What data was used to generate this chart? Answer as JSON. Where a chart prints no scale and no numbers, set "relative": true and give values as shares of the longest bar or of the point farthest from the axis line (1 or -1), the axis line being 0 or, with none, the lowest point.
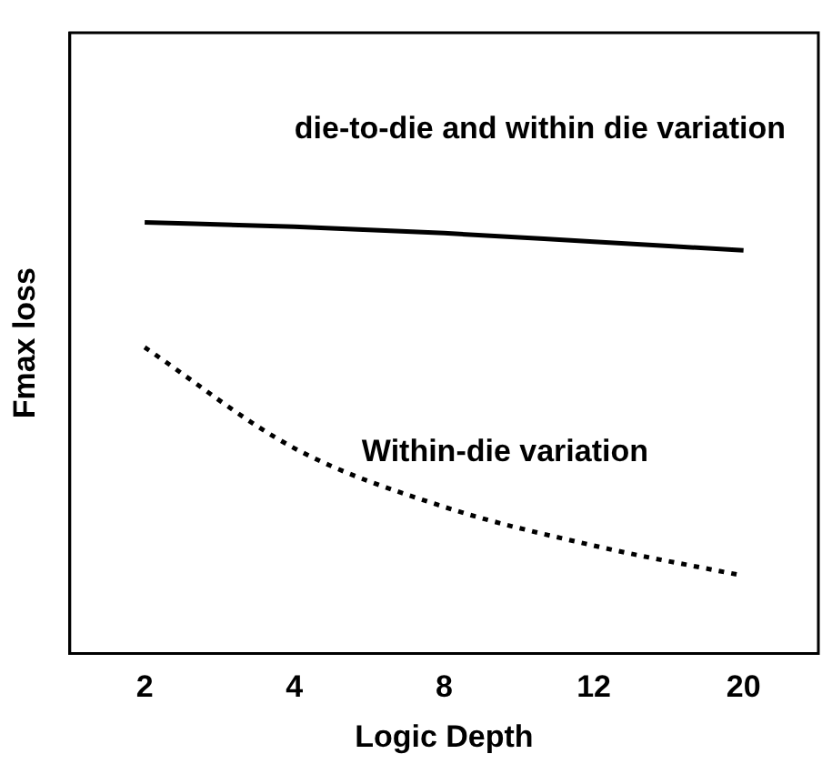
{
  "chart_data": {
    "type": "line",
    "xlabel": "Logic Depth",
    "ylabel": "Fmax loss",
    "relative": true,
    "categories": [
      "2",
      "4",
      "8",
      "12",
      "20"
    ],
    "legend": false,
    "grid": false,
    "marker": "none",
    "series": [
      {
        "name": "die-to-die and within die variation",
        "color": "#000000",
        "line_style": "solid",
        "values": [
          1,
          0.99,
          0.975,
          0.955,
          0.935
        ]
      },
      {
        "name": "Within-die variation",
        "color": "#000000",
        "line_style": "dotted",
        "values": [
          0.71,
          0.476,
          0.34,
          0.25,
          0.18
        ]
      }
    ]
  }
}
